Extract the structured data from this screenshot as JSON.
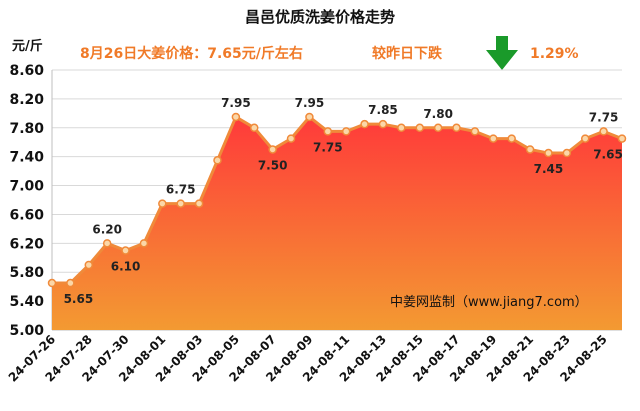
{
  "chart_data": {
    "type": "area",
    "title": "昌邑优质洗姜价格走势",
    "ylabel": "元/斤",
    "ylim": [
      5.0,
      8.6
    ],
    "yticks": [
      "8.60",
      "8.20",
      "7.80",
      "7.40",
      "7.00",
      "6.60",
      "6.20",
      "5.80",
      "5.40",
      "5.00"
    ],
    "xtick_labels": [
      "24-07-26",
      "24-07-28",
      "24-07-30",
      "24-08-01",
      "24-08-03",
      "24-08-05",
      "24-08-07",
      "24-08-09",
      "24-08-11",
      "24-08-13",
      "24-08-15",
      "24-08-17",
      "24-08-19",
      "24-08-21",
      "24-08-23",
      "24-08-25"
    ],
    "x": [
      "24-07-26",
      "24-07-27",
      "24-07-28",
      "24-07-29",
      "24-07-30",
      "24-07-31",
      "24-08-01",
      "24-08-02",
      "24-08-03",
      "24-08-04",
      "24-08-05",
      "24-08-06",
      "24-08-07",
      "24-08-08",
      "24-08-09",
      "24-08-10",
      "24-08-11",
      "24-08-12",
      "24-08-13",
      "24-08-14",
      "24-08-15",
      "24-08-16",
      "24-08-17",
      "24-08-18",
      "24-08-19",
      "24-08-20",
      "24-08-21",
      "24-08-22",
      "24-08-23",
      "24-08-24",
      "24-08-25",
      "24-08-26"
    ],
    "values": [
      5.65,
      5.65,
      5.9,
      6.2,
      6.1,
      6.2,
      6.75,
      6.75,
      6.75,
      7.35,
      7.95,
      7.8,
      7.5,
      7.65,
      7.95,
      7.75,
      7.75,
      7.85,
      7.85,
      7.8,
      7.8,
      7.8,
      7.8,
      7.75,
      7.65,
      7.65,
      7.5,
      7.45,
      7.45,
      7.65,
      7.75,
      7.65
    ],
    "data_labels": [
      {
        "index": 1,
        "text": "5.65"
      },
      {
        "index": 3,
        "text": "6.20"
      },
      {
        "index": 4,
        "text": "6.10"
      },
      {
        "index": 7,
        "text": "6.75"
      },
      {
        "index": 10,
        "text": "7.95"
      },
      {
        "index": 12,
        "text": "7.50"
      },
      {
        "index": 14,
        "text": "7.95"
      },
      {
        "index": 15,
        "text": "7.75"
      },
      {
        "index": 18,
        "text": "7.85"
      },
      {
        "index": 21,
        "text": "7.80"
      },
      {
        "index": 27,
        "text": "7.45"
      },
      {
        "index": 30,
        "text": "7.75"
      },
      {
        "index": 31,
        "text": "7.65"
      }
    ],
    "grid": true,
    "colors": {
      "line": "#f08a3a",
      "marker_fill": "#fbd7a8",
      "area_top": "#ff3a3a",
      "area_bottom": "#f39a32",
      "grid": "#d9d9d9",
      "arrow": "#1a9a2a",
      "info_text": "#f07a28"
    }
  },
  "annotations": {
    "price_note": "8月26日大姜价格：7.65元/斤左右",
    "change_note": "较昨日下跌",
    "change_pct": "1.29%",
    "change_icon": "down-arrow-icon",
    "watermark": "中姜网监制（www.jiang7.com）"
  }
}
